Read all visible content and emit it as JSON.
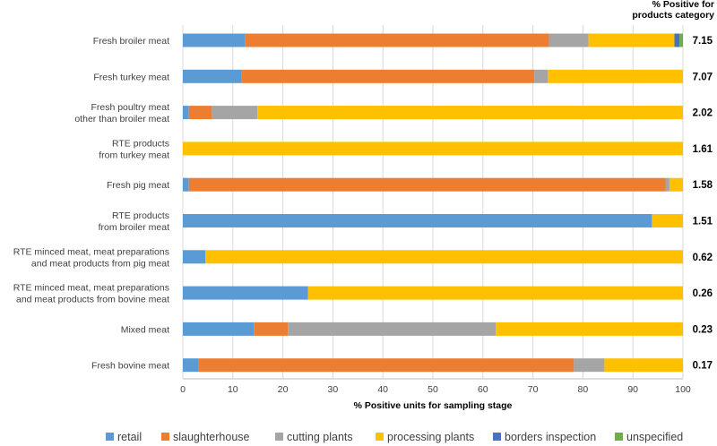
{
  "chart_data": {
    "type": "bar",
    "orientation": "horizontal",
    "stacked": true,
    "xlabel": "% Positive units for sampling stage",
    "xlim": [
      0,
      100
    ],
    "xticks": [
      0,
      10,
      20,
      30,
      40,
      50,
      60,
      70,
      80,
      90,
      100
    ],
    "right_column_title": [
      "% Positive for",
      "products category"
    ],
    "categories": [
      [
        "Fresh broiler meat"
      ],
      [
        "Fresh turkey meat"
      ],
      [
        "Fresh poultry meat",
        "other than broiler meat"
      ],
      [
        "RTE products",
        "from turkey meat"
      ],
      [
        "Fresh pig meat"
      ],
      [
        "RTE products",
        "from broiler meat"
      ],
      [
        "RTE minced meat, meat preparations",
        "and meat products from pig meat"
      ],
      [
        "RTE minced meat, meat preparations",
        "and meat products from bovine meat"
      ],
      [
        "Mixed meat"
      ],
      [
        "Fresh bovine meat"
      ]
    ],
    "positive_for_category": [
      "7.15",
      "7.07",
      "2.02",
      "1.61",
      "1.58",
      "1.51",
      "0.62",
      "0.26",
      "0.23",
      "0.17"
    ],
    "series": [
      {
        "name": "retail",
        "color": "#5B9BD5",
        "values": [
          12.5,
          11.8,
          1.2,
          0,
          1.2,
          93.8,
          4.5,
          25.0,
          14.2,
          3.2
        ]
      },
      {
        "name": "slaughterhouse",
        "color": "#ED7D31",
        "values": [
          60.7,
          58.5,
          4.6,
          0,
          95.3,
          0,
          0,
          0,
          6.8,
          75.0
        ]
      },
      {
        "name": "cutting plants",
        "color": "#A5A5A5",
        "values": [
          7.9,
          2.7,
          9.1,
          0,
          0.8,
          0,
          0,
          0,
          41.6,
          6.1
        ]
      },
      {
        "name": "processing plants",
        "color": "#FFC000",
        "values": [
          17.2,
          27.0,
          85.1,
          100,
          2.7,
          6.2,
          95.5,
          75.0,
          37.4,
          15.7
        ]
      },
      {
        "name": "borders inspection",
        "color": "#4472C4",
        "values": [
          1.0,
          0,
          0,
          0,
          0,
          0,
          0,
          0,
          0,
          0
        ]
      },
      {
        "name": "unspecified",
        "color": "#70AD47",
        "values": [
          0.7,
          0,
          0,
          0,
          0,
          0,
          0,
          0,
          0,
          0
        ]
      }
    ],
    "grid": true,
    "legend_position": "bottom"
  }
}
